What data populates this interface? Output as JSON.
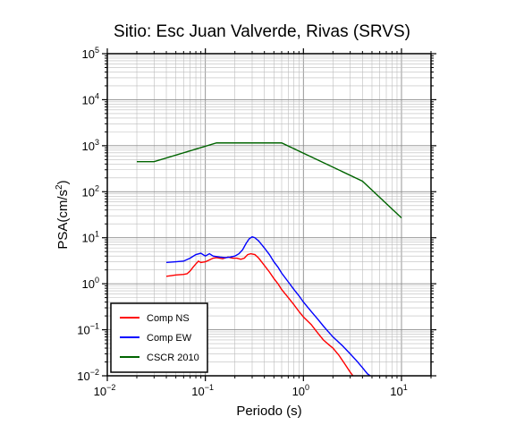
{
  "chart_data": {
    "type": "line",
    "title": "Sitio: Esc Juan Valverde, Rivas (SRVS)",
    "xlabel": "Periodo (s)",
    "ylabel_main": "PSA(cm/s",
    "ylabel_sup": "2",
    "ylabel_close": ")",
    "x_scale": "log",
    "y_scale": "log",
    "xlim": [
      0.01,
      20
    ],
    "ylim": [
      0.01,
      100000
    ],
    "x_ticks": [
      {
        "value": 0.01,
        "base": "10",
        "exp": "−2"
      },
      {
        "value": 0.1,
        "base": "10",
        "exp": "−1"
      },
      {
        "value": 1,
        "base": "10",
        "exp": "0"
      },
      {
        "value": 10,
        "base": "10",
        "exp": "1"
      }
    ],
    "y_ticks": [
      {
        "value": 0.01,
        "base": "10",
        "exp": "−2"
      },
      {
        "value": 0.1,
        "base": "10",
        "exp": "−1"
      },
      {
        "value": 1,
        "base": "10",
        "exp": "0"
      },
      {
        "value": 10,
        "base": "10",
        "exp": "1"
      },
      {
        "value": 100,
        "base": "10",
        "exp": "2"
      },
      {
        "value": 1000,
        "base": "10",
        "exp": "3"
      },
      {
        "value": 10000,
        "base": "10",
        "exp": "4"
      },
      {
        "value": 100000,
        "base": "10",
        "exp": "5"
      }
    ],
    "grid": true,
    "legend_position": "bottom-left",
    "series": [
      {
        "name": "Comp NS",
        "color": "#ff0000",
        "points": [
          [
            0.04,
            1.45
          ],
          [
            0.045,
            1.5
          ],
          [
            0.05,
            1.55
          ],
          [
            0.06,
            1.6
          ],
          [
            0.065,
            1.65
          ],
          [
            0.07,
            1.9
          ],
          [
            0.075,
            2.3
          ],
          [
            0.08,
            2.7
          ],
          [
            0.085,
            3.1
          ],
          [
            0.09,
            2.9
          ],
          [
            0.1,
            3.0
          ],
          [
            0.11,
            3.3
          ],
          [
            0.12,
            3.6
          ],
          [
            0.13,
            3.7
          ],
          [
            0.15,
            3.5
          ],
          [
            0.17,
            3.8
          ],
          [
            0.19,
            3.6
          ],
          [
            0.21,
            3.6
          ],
          [
            0.23,
            3.4
          ],
          [
            0.25,
            3.6
          ],
          [
            0.27,
            4.3
          ],
          [
            0.29,
            4.5
          ],
          [
            0.32,
            4.3
          ],
          [
            0.35,
            3.6
          ],
          [
            0.4,
            2.5
          ],
          [
            0.45,
            1.8
          ],
          [
            0.5,
            1.3
          ],
          [
            0.55,
            1.0
          ],
          [
            0.6,
            0.75
          ],
          [
            0.7,
            0.5
          ],
          [
            0.8,
            0.35
          ],
          [
            0.9,
            0.25
          ],
          [
            1.0,
            0.19
          ],
          [
            1.2,
            0.13
          ],
          [
            1.4,
            0.085
          ],
          [
            1.6,
            0.06
          ],
          [
            1.8,
            0.048
          ],
          [
            2.0,
            0.04
          ],
          [
            2.3,
            0.028
          ],
          [
            2.6,
            0.019
          ],
          [
            3.0,
            0.012
          ],
          [
            3.2,
            0.01
          ]
        ]
      },
      {
        "name": "Comp EW",
        "color": "#0000ff",
        "points": [
          [
            0.04,
            2.9
          ],
          [
            0.05,
            3.0
          ],
          [
            0.06,
            3.1
          ],
          [
            0.07,
            3.6
          ],
          [
            0.08,
            4.3
          ],
          [
            0.09,
            4.6
          ],
          [
            0.1,
            4.0
          ],
          [
            0.11,
            4.5
          ],
          [
            0.12,
            4.0
          ],
          [
            0.14,
            3.8
          ],
          [
            0.16,
            3.7
          ],
          [
            0.18,
            3.8
          ],
          [
            0.2,
            4.0
          ],
          [
            0.22,
            4.5
          ],
          [
            0.24,
            5.5
          ],
          [
            0.26,
            7.5
          ],
          [
            0.28,
            9.5
          ],
          [
            0.3,
            10.5
          ],
          [
            0.32,
            10.0
          ],
          [
            0.35,
            8.5
          ],
          [
            0.4,
            6.0
          ],
          [
            0.45,
            4.3
          ],
          [
            0.5,
            3.0
          ],
          [
            0.55,
            2.3
          ],
          [
            0.6,
            1.7
          ],
          [
            0.7,
            1.1
          ],
          [
            0.8,
            0.75
          ],
          [
            0.9,
            0.55
          ],
          [
            1.0,
            0.4
          ],
          [
            1.2,
            0.25
          ],
          [
            1.4,
            0.17
          ],
          [
            1.6,
            0.12
          ],
          [
            1.8,
            0.09
          ],
          [
            2.0,
            0.07
          ],
          [
            2.5,
            0.045
          ],
          [
            3.0,
            0.03
          ],
          [
            3.5,
            0.021
          ],
          [
            4.0,
            0.015
          ],
          [
            4.5,
            0.011
          ],
          [
            4.8,
            0.01
          ]
        ]
      },
      {
        "name": "CSCR 2010",
        "color": "#006400",
        "points": [
          [
            0.02,
            450
          ],
          [
            0.03,
            450
          ],
          [
            0.13,
            1150
          ],
          [
            0.6,
            1150
          ],
          [
            4.0,
            170
          ],
          [
            10.0,
            27
          ]
        ]
      }
    ]
  }
}
